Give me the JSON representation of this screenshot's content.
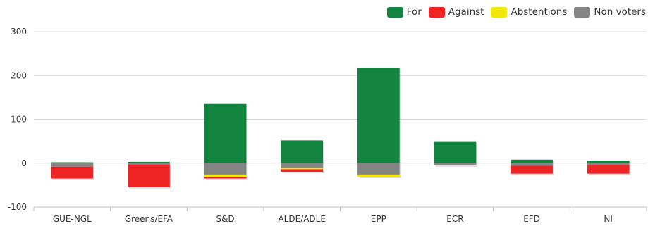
{
  "chart_data": {
    "type": "bar",
    "stacked": true,
    "categories": [
      "GUE-NGL",
      "Greens/EFA",
      "S&D",
      "ALDE/ADLE",
      "EPP",
      "ECR",
      "EFD",
      "NI"
    ],
    "series": [
      {
        "name": "For",
        "color": "#12843f",
        "values": [
          2,
          3,
          135,
          52,
          218,
          50,
          8,
          6
        ]
      },
      {
        "name": "Against",
        "color": "#ee2323",
        "values": [
          -27,
          -52,
          -3,
          -6,
          0,
          0,
          -18,
          -20
        ]
      },
      {
        "name": "Abstentions",
        "color": "#f2e70a",
        "values": [
          0,
          0,
          -6,
          -3,
          -5,
          0,
          0,
          0
        ]
      },
      {
        "name": "Non voters",
        "color": "#858585",
        "values": [
          -8,
          -3,
          -26,
          -11,
          -26,
          -5,
          -6,
          -4
        ]
      }
    ],
    "ylim": [
      -100,
      300
    ],
    "yticks": [
      -100,
      0,
      100,
      200,
      300
    ],
    "grid": true,
    "legend_position": "top-right"
  }
}
